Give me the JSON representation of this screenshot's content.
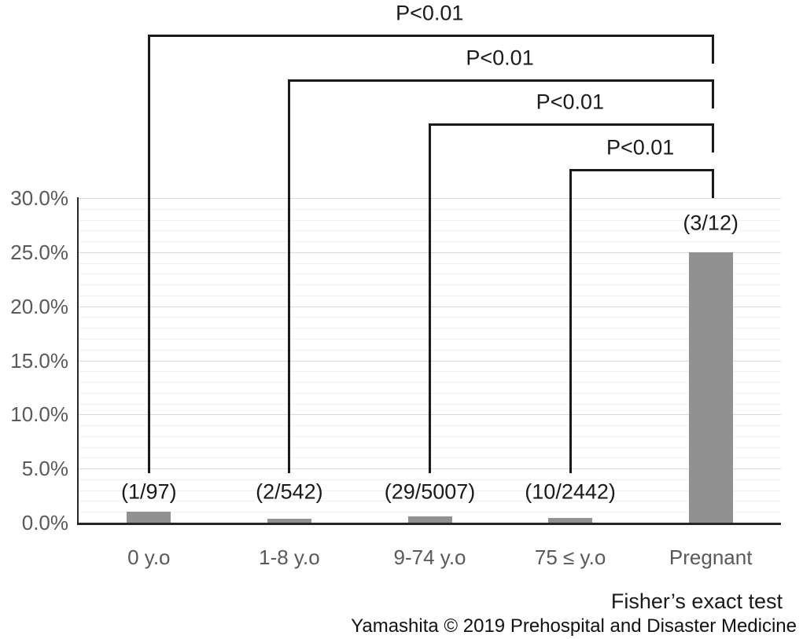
{
  "chart_data": {
    "type": "bar",
    "title": "",
    "xlabel": "",
    "ylabel": "",
    "categories": [
      "0 y.o",
      "1-8 y.o",
      "9-74 y.o",
      "75 ≤ y.o",
      "Pregnant"
    ],
    "values": [
      1.03,
      0.37,
      0.58,
      0.41,
      25.0
    ],
    "bar_labels": [
      "(1/97)",
      "(2/542)",
      "(29/5007)",
      "(10/2442)",
      "(3/12)"
    ],
    "ylim": [
      0,
      30
    ],
    "ytick_step": 5,
    "ytick_labels": [
      "0.0%",
      "5.0%",
      "10.0%",
      "15.0%",
      "20.0%",
      "25.0%",
      "30.0%"
    ],
    "minor_grid_step": 1,
    "grid": true,
    "legend": "none",
    "comparisons": [
      {
        "from": 0,
        "to": 4,
        "label": "P<0.01"
      },
      {
        "from": 1,
        "to": 4,
        "label": "P<0.01"
      },
      {
        "from": 2,
        "to": 4,
        "label": "P<0.01"
      },
      {
        "from": 3,
        "to": 4,
        "label": "P<0.01"
      }
    ],
    "footnote": "Fisher’s exact test",
    "attribution": "Yamashita © 2019 Prehospital and Disaster Medicine",
    "colors": {
      "bar": "#919191",
      "axis": "#262626",
      "major_grid": "#d9d9d9",
      "minor_grid": "#f1f1f1",
      "tick_label": "#595959",
      "category_label": "#595959",
      "annotation": "#1a1a1a",
      "bracket": "#1a1a1a"
    }
  }
}
